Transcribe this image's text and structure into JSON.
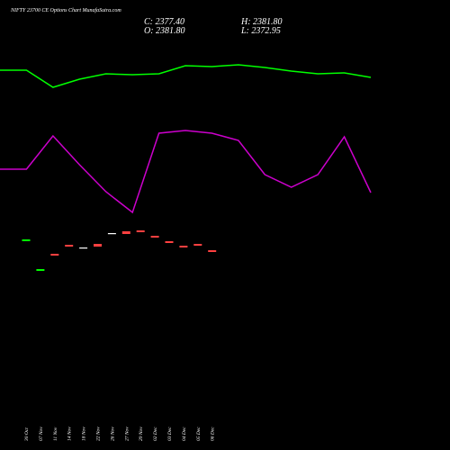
{
  "chart_data": [
    {
      "type": "candlestick",
      "title": "NIFTY 23700  CE Options  Chart MunafaSutra.com",
      "close_label": "C: 2377.40",
      "high_label": "H: 2381.80",
      "open_label": "O: 2381.80",
      "low_label": "L: 2372.95",
      "categories": [
        "30 Oct",
        "07 Nov",
        "11 Nov",
        "14 Nov",
        "18 Nov",
        "22 Nov",
        "26 Nov",
        "27 Nov",
        "29 Nov",
        "02 Dec",
        "03 Dec",
        "04 Dec",
        "05 Dec",
        "06 Dec"
      ],
      "open": [
        232,
        199,
        218,
        228,
        225,
        229,
        241,
        243,
        244,
        238,
        232,
        227,
        229,
        222
      ],
      "close": [
        234,
        201,
        216,
        226,
        225,
        226,
        241,
        240,
        242,
        236,
        230,
        225,
        227,
        220
      ],
      "up_color": "#00ff00",
      "down_color": "#ff4040",
      "flat_color": "#ffffff",
      "ylim": [
        0,
        500
      ]
    },
    {
      "type": "line",
      "series": [
        {
          "color": "#00ff00",
          "values": [
            422,
            422,
            403,
            412,
            418,
            417,
            418,
            427,
            426,
            428,
            425,
            421,
            418,
            419,
            414
          ]
        },
        {
          "color": "#cc00cc",
          "values": [
            312,
            312,
            349,
            317,
            287,
            264,
            352,
            355,
            352,
            344,
            306,
            292,
            306,
            348,
            286
          ]
        }
      ],
      "ylim": [
        0,
        500
      ]
    }
  ]
}
